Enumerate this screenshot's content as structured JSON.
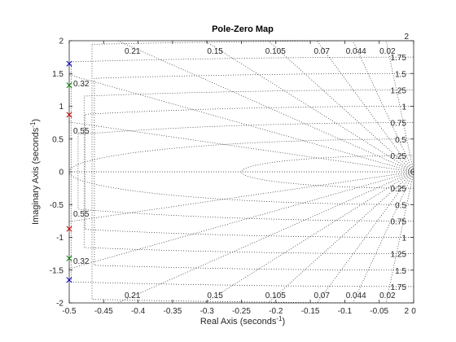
{
  "chart_data": {
    "type": "scatter",
    "title": "Pole-Zero Map",
    "xlabel": "Real Axis (seconds",
    "ylabel": "Imaginary Axis (seconds",
    "unit_exponent": "-1",
    "xlim": [
      -0.5,
      0
    ],
    "ylim": [
      -2,
      2
    ],
    "xticks": [
      "-0.5",
      "-0.45",
      "-0.4",
      "-0.35",
      "-0.3",
      "-0.25",
      "-0.2",
      "-0.15",
      "-0.1",
      "-0.05",
      "0"
    ],
    "yticks": [
      "-2",
      "-1.5",
      "-1",
      "-0.5",
      "0",
      "0.5",
      "1",
      "1.5",
      "2"
    ],
    "damping_grid": [
      0.02,
      0.044,
      0.07,
      0.105,
      0.15,
      0.21,
      0.32,
      0.55
    ],
    "damping_labels": [
      "0.02",
      "0.044",
      "0.07",
      "0.105",
      "0.15",
      "0.21",
      "0.32",
      "0.55"
    ],
    "natural_frequency_grid": [
      0.25,
      0.5,
      0.75,
      1,
      1.25,
      1.5,
      1.75,
      2
    ],
    "natural_frequency_labels": [
      "0.25",
      "0.5",
      "0.75",
      "1",
      "1.25",
      "1.5",
      "1.75",
      "2"
    ],
    "poles": [
      {
        "x": -0.5,
        "y": 1.65,
        "color": "#0000cd"
      },
      {
        "x": -0.5,
        "y": -1.65,
        "color": "#0000cd"
      },
      {
        "x": -0.5,
        "y": 1.32,
        "color": "#008000"
      },
      {
        "x": -0.5,
        "y": -1.32,
        "color": "#008000"
      },
      {
        "x": -0.5,
        "y": 0.87,
        "color": "#cc0000"
      },
      {
        "x": -0.5,
        "y": -0.87,
        "color": "#cc0000"
      }
    ],
    "grid": true,
    "marker": "x"
  }
}
